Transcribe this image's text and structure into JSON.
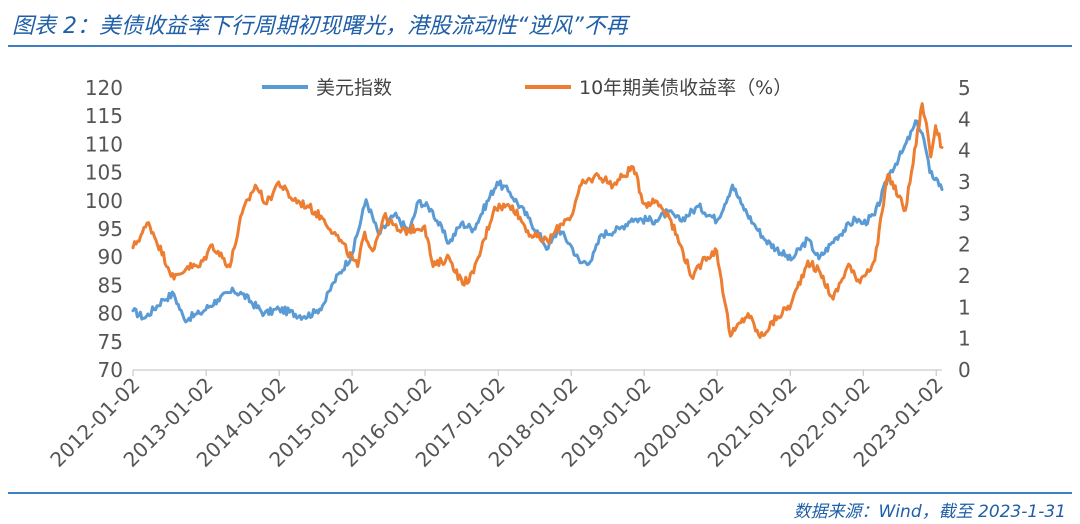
{
  "header": {
    "title": "图表 2：美债收益率下行周期初现曙光，港股流动性“逆风”不再"
  },
  "footer": {
    "source": "数据来源：Wind，截至 2023-1-31"
  },
  "chart_data": {
    "type": "line",
    "title": "",
    "xlabel": "",
    "ylabel": "",
    "x_ticks": [
      "2012-01-02",
      "2013-01-02",
      "2014-01-02",
      "2015-01-02",
      "2016-01-02",
      "2017-01-02",
      "2018-01-02",
      "2019-01-02",
      "2020-01-02",
      "2021-01-02",
      "2022-01-02",
      "2023-01-02"
    ],
    "x_range": [
      "2012-01-02",
      "2023-01-31"
    ],
    "y_left": {
      "range": [
        70,
        120
      ],
      "ticks": [
        "70",
        "75",
        "80",
        "85",
        "90",
        "95",
        "100",
        "105",
        "110",
        "115",
        "120"
      ]
    },
    "y_right": {
      "range": [
        0,
        4.5
      ],
      "ticks": [
        "0",
        "1",
        "1",
        "2",
        "2",
        "3",
        "3",
        "4",
        "4",
        "5"
      ]
    },
    "legend_position": "top-center",
    "grid": false,
    "series": [
      {
        "name": "美元指数",
        "axis": "left",
        "color": "#5b9bd5",
        "points": [
          [
            "2012-01-02",
            80.5
          ],
          [
            "2012-03-01",
            79.2
          ],
          [
            "2012-06-01",
            82.5
          ],
          [
            "2012-07-24",
            83.5
          ],
          [
            "2012-09-14",
            79.0
          ],
          [
            "2012-12-01",
            80.0
          ],
          [
            "2013-03-01",
            82.5
          ],
          [
            "2013-05-20",
            84.0
          ],
          [
            "2013-07-01",
            83.5
          ],
          [
            "2013-10-20",
            80.0
          ],
          [
            "2014-01-02",
            80.8
          ],
          [
            "2014-05-08",
            79.5
          ],
          [
            "2014-07-01",
            80.2
          ],
          [
            "2014-08-15",
            81.8
          ],
          [
            "2014-10-01",
            85.5
          ],
          [
            "2015-01-02",
            90.5
          ],
          [
            "2015-03-13",
            100.2
          ],
          [
            "2015-05-15",
            94.0
          ],
          [
            "2015-08-01",
            97.5
          ],
          [
            "2015-10-15",
            94.5
          ],
          [
            "2015-12-01",
            100.0
          ],
          [
            "2016-02-01",
            98.5
          ],
          [
            "2016-05-01",
            92.5
          ],
          [
            "2016-07-01",
            96.0
          ],
          [
            "2016-09-01",
            95.0
          ],
          [
            "2016-12-28",
            103.3
          ],
          [
            "2017-03-01",
            101.5
          ],
          [
            "2017-06-01",
            97.0
          ],
          [
            "2017-09-08",
            91.5
          ],
          [
            "2017-11-01",
            95.0
          ],
          [
            "2018-01-02",
            92.0
          ],
          [
            "2018-02-15",
            89.0
          ],
          [
            "2018-04-15",
            89.5
          ],
          [
            "2018-06-01",
            94.0
          ],
          [
            "2018-09-01",
            95.0
          ],
          [
            "2018-11-01",
            96.8
          ],
          [
            "2019-03-01",
            96.5
          ],
          [
            "2019-05-01",
            98.0
          ],
          [
            "2019-07-01",
            96.5
          ],
          [
            "2019-10-01",
            99.0
          ],
          [
            "2020-01-02",
            96.5
          ],
          [
            "2020-03-19",
            102.8
          ],
          [
            "2020-05-01",
            99.5
          ],
          [
            "2020-07-01",
            96.0
          ],
          [
            "2020-09-01",
            93.0
          ],
          [
            "2021-01-06",
            89.5
          ],
          [
            "2021-03-31",
            93.2
          ],
          [
            "2021-05-25",
            89.7
          ],
          [
            "2021-08-20",
            93.5
          ],
          [
            "2021-11-24",
            96.8
          ],
          [
            "2022-01-02",
            96.0
          ],
          [
            "2022-03-01",
            97.5
          ],
          [
            "2022-05-13",
            104.8
          ],
          [
            "2022-07-14",
            108.5
          ],
          [
            "2022-09-28",
            114.1
          ],
          [
            "2022-11-01",
            111.0
          ],
          [
            "2022-12-01",
            105.0
          ],
          [
            "2023-01-02",
            104.0
          ],
          [
            "2023-01-31",
            102.0
          ]
        ]
      },
      {
        "name": "10年期美债收益率（%）",
        "axis": "right",
        "color": "#ed7d31",
        "points": [
          [
            "2012-01-02",
            1.95
          ],
          [
            "2012-03-20",
            2.35
          ],
          [
            "2012-07-25",
            1.45
          ],
          [
            "2012-10-01",
            1.65
          ],
          [
            "2012-12-01",
            1.65
          ],
          [
            "2013-02-01",
            2.0
          ],
          [
            "2013-05-01",
            1.65
          ],
          [
            "2013-07-01",
            2.5
          ],
          [
            "2013-09-05",
            2.95
          ],
          [
            "2013-11-01",
            2.65
          ],
          [
            "2013-12-31",
            3.0
          ],
          [
            "2014-03-01",
            2.75
          ],
          [
            "2014-06-01",
            2.6
          ],
          [
            "2014-08-15",
            2.4
          ],
          [
            "2014-10-15",
            2.15
          ],
          [
            "2015-01-30",
            1.65
          ],
          [
            "2015-03-06",
            2.2
          ],
          [
            "2015-04-15",
            1.9
          ],
          [
            "2015-06-10",
            2.45
          ],
          [
            "2015-09-01",
            2.2
          ],
          [
            "2015-12-31",
            2.3
          ],
          [
            "2016-02-11",
            1.65
          ],
          [
            "2016-05-01",
            1.8
          ],
          [
            "2016-07-08",
            1.37
          ],
          [
            "2016-09-01",
            1.55
          ],
          [
            "2016-12-15",
            2.6
          ],
          [
            "2017-03-14",
            2.62
          ],
          [
            "2017-06-14",
            2.15
          ],
          [
            "2017-09-07",
            2.05
          ],
          [
            "2017-12-01",
            2.4
          ],
          [
            "2018-01-02",
            2.45
          ],
          [
            "2018-02-21",
            2.95
          ],
          [
            "2018-05-17",
            3.11
          ],
          [
            "2018-08-01",
            2.95
          ],
          [
            "2018-11-08",
            3.24
          ],
          [
            "2019-01-02",
            2.65
          ],
          [
            "2019-03-01",
            2.7
          ],
          [
            "2019-05-01",
            2.5
          ],
          [
            "2019-07-01",
            2.0
          ],
          [
            "2019-09-03",
            1.46
          ],
          [
            "2019-11-01",
            1.8
          ],
          [
            "2019-12-31",
            1.9
          ],
          [
            "2020-03-09",
            0.54
          ],
          [
            "2020-06-05",
            0.9
          ],
          [
            "2020-08-04",
            0.52
          ],
          [
            "2020-11-01",
            0.85
          ],
          [
            "2021-01-06",
            1.05
          ],
          [
            "2021-03-31",
            1.74
          ],
          [
            "2021-06-01",
            1.55
          ],
          [
            "2021-08-04",
            1.13
          ],
          [
            "2021-10-21",
            1.69
          ],
          [
            "2021-12-01",
            1.42
          ],
          [
            "2022-01-02",
            1.5
          ],
          [
            "2022-03-01",
            1.75
          ],
          [
            "2022-05-06",
            3.12
          ],
          [
            "2022-08-01",
            2.55
          ],
          [
            "2022-10-24",
            4.25
          ],
          [
            "2022-11-20",
            3.8
          ],
          [
            "2022-12-06",
            3.4
          ],
          [
            "2022-12-30",
            3.9
          ],
          [
            "2023-01-02",
            3.85
          ],
          [
            "2023-01-31",
            3.55
          ]
        ]
      }
    ]
  }
}
